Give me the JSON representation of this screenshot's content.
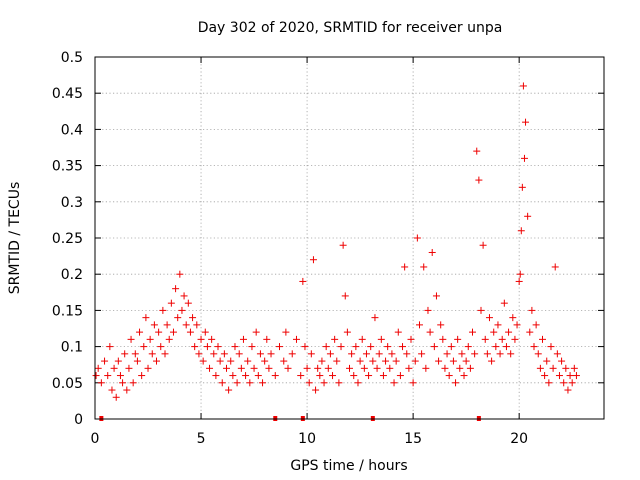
{
  "chart_data": {
    "type": "scatter",
    "title": "Day 302 of 2020, SRMTID for receiver unpa",
    "xlabel": "GPS time / hours",
    "ylabel": "SRMTID / TECUs",
    "xlim": [
      0,
      24
    ],
    "ylim": [
      0,
      0.5
    ],
    "xticks": [
      0,
      5,
      10,
      15,
      20
    ],
    "xtick_labels": [
      "0",
      "5",
      "10",
      "15",
      "20"
    ],
    "yticks": [
      0,
      0.05,
      0.1,
      0.15,
      0.2,
      0.25,
      0.3,
      0.35,
      0.4,
      0.45,
      0.5
    ],
    "ytick_labels": [
      "0",
      "0.05",
      "0.1",
      "0.15",
      "0.2",
      "0.25",
      "0.3",
      "0.35",
      "0.4",
      "0.45",
      "0.5"
    ],
    "grid": true,
    "marker": "+",
    "color": "#ee0000",
    "series": [
      {
        "name": "SRMTID",
        "x": [
          0.05,
          0.15,
          0.3,
          0.45,
          0.6,
          0.7,
          0.8,
          0.9,
          1.0,
          1.1,
          1.2,
          1.3,
          1.4,
          1.5,
          1.6,
          1.7,
          1.8,
          1.9,
          2.0,
          2.1,
          2.2,
          2.3,
          2.4,
          2.5,
          2.6,
          2.7,
          2.8,
          2.9,
          3.0,
          3.1,
          3.2,
          3.3,
          3.4,
          3.5,
          3.6,
          3.7,
          3.8,
          3.9,
          4.0,
          4.1,
          4.2,
          4.3,
          4.4,
          4.5,
          4.6,
          4.7,
          4.8,
          4.9,
          5.0,
          5.1,
          5.2,
          5.3,
          5.4,
          5.5,
          5.6,
          5.7,
          5.8,
          5.9,
          6.0,
          6.1,
          6.2,
          6.3,
          6.4,
          6.5,
          6.6,
          6.7,
          6.8,
          6.9,
          7.0,
          7.1,
          7.2,
          7.3,
          7.4,
          7.5,
          7.6,
          7.7,
          7.8,
          7.9,
          8.0,
          8.1,
          8.2,
          8.3,
          8.5,
          8.7,
          8.9,
          9.0,
          9.1,
          9.3,
          9.5,
          9.7,
          9.8,
          9.9,
          10.0,
          10.1,
          10.2,
          10.3,
          10.4,
          10.5,
          10.6,
          10.7,
          10.8,
          10.9,
          11.0,
          11.1,
          11.2,
          11.3,
          11.4,
          11.5,
          11.6,
          11.7,
          11.8,
          11.9,
          12.0,
          12.1,
          12.2,
          12.3,
          12.4,
          12.5,
          12.6,
          12.7,
          12.8,
          12.9,
          13.0,
          13.1,
          13.2,
          13.3,
          13.4,
          13.5,
          13.6,
          13.7,
          13.8,
          13.9,
          14.0,
          14.1,
          14.2,
          14.3,
          14.4,
          14.5,
          14.6,
          14.7,
          14.8,
          14.9,
          15.0,
          15.1,
          15.2,
          15.3,
          15.4,
          15.5,
          15.6,
          15.7,
          15.8,
          15.9,
          16.0,
          16.1,
          16.2,
          16.3,
          16.4,
          16.5,
          16.6,
          16.7,
          16.8,
          16.9,
          17.0,
          17.1,
          17.2,
          17.3,
          17.4,
          17.5,
          17.6,
          17.7,
          17.8,
          17.9,
          18.0,
          18.1,
          18.2,
          18.3,
          18.4,
          18.5,
          18.6,
          18.7,
          18.8,
          18.9,
          19.0,
          19.1,
          19.2,
          19.3,
          19.4,
          19.5,
          19.6,
          19.7,
          19.8,
          19.9,
          20.0,
          20.05,
          20.1,
          20.15,
          20.2,
          20.25,
          20.3,
          20.4,
          20.5,
          20.6,
          20.7,
          20.8,
          20.9,
          21.0,
          21.1,
          21.2,
          21.3,
          21.4,
          21.5,
          21.6,
          21.7,
          21.8,
          21.9,
          22.0,
          22.1,
          22.2,
          22.3,
          22.4,
          22.5,
          22.6,
          22.7
        ],
        "y": [
          0.06,
          0.07,
          0.05,
          0.08,
          0.06,
          0.1,
          0.04,
          0.07,
          0.03,
          0.08,
          0.06,
          0.05,
          0.09,
          0.04,
          0.07,
          0.11,
          0.05,
          0.09,
          0.08,
          0.12,
          0.06,
          0.1,
          0.14,
          0.07,
          0.11,
          0.09,
          0.13,
          0.08,
          0.12,
          0.1,
          0.15,
          0.09,
          0.13,
          0.11,
          0.16,
          0.12,
          0.18,
          0.14,
          0.2,
          0.15,
          0.17,
          0.13,
          0.16,
          0.12,
          0.14,
          0.1,
          0.13,
          0.09,
          0.11,
          0.08,
          0.12,
          0.1,
          0.07,
          0.11,
          0.09,
          0.06,
          0.1,
          0.08,
          0.05,
          0.09,
          0.07,
          0.04,
          0.08,
          0.06,
          0.1,
          0.05,
          0.09,
          0.07,
          0.11,
          0.06,
          0.08,
          0.05,
          0.1,
          0.07,
          0.12,
          0.06,
          0.09,
          0.05,
          0.08,
          0.11,
          0.07,
          0.09,
          0.06,
          0.1,
          0.08,
          0.12,
          0.07,
          0.09,
          0.11,
          0.06,
          0.19,
          0.1,
          0.07,
          0.05,
          0.09,
          0.22,
          0.04,
          0.07,
          0.06,
          0.08,
          0.05,
          0.1,
          0.07,
          0.09,
          0.06,
          0.11,
          0.08,
          0.05,
          0.1,
          0.24,
          0.17,
          0.12,
          0.07,
          0.09,
          0.06,
          0.1,
          0.05,
          0.08,
          0.11,
          0.07,
          0.09,
          0.06,
          0.1,
          0.08,
          0.14,
          0.07,
          0.09,
          0.11,
          0.06,
          0.08,
          0.1,
          0.07,
          0.09,
          0.05,
          0.08,
          0.12,
          0.06,
          0.1,
          0.21,
          0.09,
          0.07,
          0.11,
          0.05,
          0.08,
          0.25,
          0.13,
          0.09,
          0.21,
          0.07,
          0.15,
          0.12,
          0.23,
          0.1,
          0.17,
          0.08,
          0.13,
          0.11,
          0.07,
          0.09,
          0.06,
          0.1,
          0.08,
          0.05,
          0.11,
          0.07,
          0.09,
          0.06,
          0.08,
          0.1,
          0.07,
          0.12,
          0.09,
          0.37,
          0.33,
          0.15,
          0.24,
          0.11,
          0.09,
          0.14,
          0.08,
          0.12,
          0.1,
          0.13,
          0.09,
          0.11,
          0.16,
          0.1,
          0.12,
          0.09,
          0.14,
          0.11,
          0.13,
          0.19,
          0.2,
          0.26,
          0.32,
          0.46,
          0.36,
          0.41,
          0.28,
          0.12,
          0.15,
          0.1,
          0.13,
          0.09,
          0.07,
          0.11,
          0.06,
          0.08,
          0.05,
          0.1,
          0.07,
          0.21,
          0.09,
          0.06,
          0.08,
          0.05,
          0.07,
          0.04,
          0.06,
          0.05,
          0.07,
          0.06
        ]
      }
    ],
    "x_markers": [
      0.3,
      8.5,
      9.8,
      13.1,
      18.1
    ]
  }
}
